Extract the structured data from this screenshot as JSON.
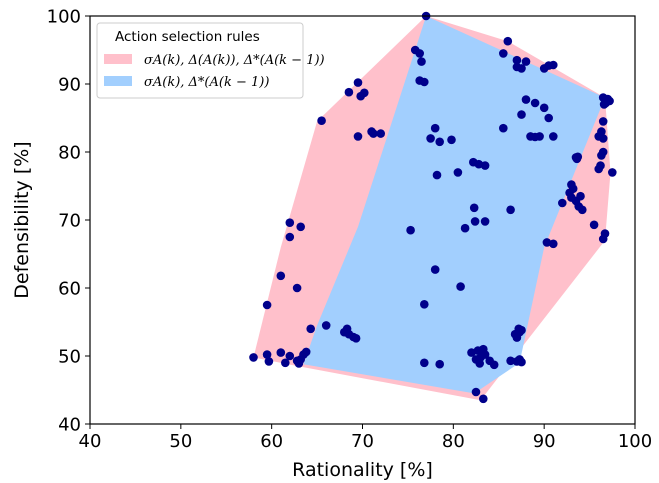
{
  "chart_data": {
    "type": "scatter",
    "xlabel": "Rationality [%]",
    "ylabel": "Defensibility [%]",
    "xlim": [
      40,
      100
    ],
    "ylim": [
      40,
      100
    ],
    "xticks": [
      "40",
      "50",
      "60",
      "70",
      "80",
      "90",
      "100"
    ],
    "yticks": [
      "40",
      "50",
      "60",
      "70",
      "80",
      "90",
      "100"
    ],
    "grid": false,
    "legend": {
      "title": "Action selection rules",
      "placement": "top-left",
      "entries": [
        {
          "label": "σA(k), Δ(A(k)), Δ*(A(k − 1))",
          "color": "#ffc0cb"
        },
        {
          "label": "σA(k), Δ*(A(k − 1))",
          "color": "#a2cffe"
        }
      ]
    },
    "regions": [
      {
        "color": "#ffc0cb",
        "hull": [
          [
            77,
            100
          ],
          [
            86,
            96.3
          ],
          [
            96.7,
            88
          ],
          [
            97.3,
            77
          ],
          [
            96.7,
            67
          ],
          [
            83,
            43.5
          ],
          [
            62.5,
            48.6
          ],
          [
            58,
            49.8
          ],
          [
            61,
            66
          ],
          [
            65,
            84.5
          ]
        ]
      },
      {
        "color": "#a2cffe",
        "hull": [
          [
            77,
            100
          ],
          [
            96.7,
            88
          ],
          [
            90,
            66
          ],
          [
            87.3,
            49
          ],
          [
            82.3,
            44.5
          ],
          [
            63.5,
            48.8
          ],
          [
            65,
            54.5
          ],
          [
            69.5,
            69
          ]
        ]
      }
    ],
    "points_color": "#00008b",
    "points": [
      [
        77,
        100
      ],
      [
        75.8,
        95
      ],
      [
        76.3,
        94.5
      ],
      [
        76.5,
        93.3
      ],
      [
        76.3,
        90.5
      ],
      [
        76.8,
        90.3
      ],
      [
        69.5,
        90.2
      ],
      [
        68.5,
        88.8
      ],
      [
        69.8,
        88.2
      ],
      [
        70.2,
        88.7
      ],
      [
        65.5,
        84.6
      ],
      [
        69.5,
        82.3
      ],
      [
        71,
        83
      ],
      [
        71.2,
        82.7
      ],
      [
        72,
        82.7
      ],
      [
        86,
        96.3
      ],
      [
        85.5,
        94.5
      ],
      [
        87,
        93.5
      ],
      [
        88,
        93.3
      ],
      [
        87,
        92.5
      ],
      [
        87.5,
        92.3
      ],
      [
        90,
        92.3
      ],
      [
        90.5,
        92.7
      ],
      [
        91,
        92.8
      ],
      [
        96.5,
        88
      ],
      [
        96.8,
        87.5
      ],
      [
        97,
        87.8
      ],
      [
        96.8,
        87.2
      ],
      [
        97.2,
        87.5
      ],
      [
        96.6,
        87
      ],
      [
        88,
        87.7
      ],
      [
        89,
        87.2
      ],
      [
        90,
        86.5
      ],
      [
        87.5,
        85.5
      ],
      [
        90.5,
        85
      ],
      [
        78,
        83.5
      ],
      [
        77.5,
        82
      ],
      [
        78.5,
        81.5
      ],
      [
        79.8,
        81.8
      ],
      [
        85.5,
        83.5
      ],
      [
        88.5,
        82.3
      ],
      [
        89,
        82.2
      ],
      [
        89.5,
        82.3
      ],
      [
        91,
        82.3
      ],
      [
        96.5,
        84.5
      ],
      [
        96.3,
        83
      ],
      [
        96,
        82.3
      ],
      [
        96.5,
        82
      ],
      [
        96.5,
        80
      ],
      [
        96.3,
        79.5
      ],
      [
        96.2,
        78
      ],
      [
        96,
        77.5
      ],
      [
        97.5,
        77
      ],
      [
        93.5,
        79.2
      ],
      [
        93.6,
        79
      ],
      [
        93.7,
        79.3
      ],
      [
        82.2,
        78.5
      ],
      [
        82.8,
        78.2
      ],
      [
        83.5,
        78
      ],
      [
        80.5,
        77
      ],
      [
        78.2,
        76.6
      ],
      [
        93,
        75.2
      ],
      [
        93.2,
        74.6
      ],
      [
        92.8,
        74
      ],
      [
        93,
        73.3
      ],
      [
        93.5,
        72.8
      ],
      [
        94,
        73.5
      ],
      [
        92,
        72.5
      ],
      [
        93.8,
        72
      ],
      [
        94.2,
        71.5
      ],
      [
        82.3,
        71.8
      ],
      [
        86.3,
        71.5
      ],
      [
        82.4,
        69.8
      ],
      [
        83.5,
        69.8
      ],
      [
        81.3,
        68.8
      ],
      [
        75.3,
        68.5
      ],
      [
        95.5,
        69.3
      ],
      [
        96.7,
        68
      ],
      [
        96.5,
        67.2
      ],
      [
        90.3,
        66.7
      ],
      [
        91,
        66.5
      ],
      [
        62,
        69.6
      ],
      [
        63.2,
        69
      ],
      [
        62,
        67.5
      ],
      [
        61,
        61.8
      ],
      [
        62.8,
        60
      ],
      [
        59.5,
        57.5
      ],
      [
        78,
        62.7
      ],
      [
        80.8,
        60.2
      ],
      [
        76.8,
        57.6
      ],
      [
        66,
        54.5
      ],
      [
        64.3,
        54
      ],
      [
        68,
        53.5
      ],
      [
        68.3,
        54
      ],
      [
        68.5,
        53.2
      ],
      [
        69,
        52.8
      ],
      [
        69.3,
        52.6
      ],
      [
        87,
        52.7
      ],
      [
        87.3,
        53.5
      ],
      [
        87.2,
        54
      ],
      [
        87.5,
        53.8
      ],
      [
        86.8,
        53.2
      ],
      [
        58,
        49.8
      ],
      [
        59.5,
        50.2
      ],
      [
        59.7,
        49.2
      ],
      [
        61,
        50.5
      ],
      [
        61.5,
        49
      ],
      [
        62,
        50
      ],
      [
        62.8,
        49.3
      ],
      [
        63,
        48.9
      ],
      [
        63.2,
        49.5
      ],
      [
        63.5,
        50.2
      ],
      [
        63.8,
        50.6
      ],
      [
        76.8,
        49
      ],
      [
        78.5,
        48.8
      ],
      [
        82,
        50.5
      ],
      [
        82.5,
        49.5
      ],
      [
        83,
        49.8
      ],
      [
        83.3,
        51
      ],
      [
        83.5,
        50.2
      ],
      [
        84,
        49.3
      ],
      [
        84.5,
        48.7
      ],
      [
        82.7,
        50.8
      ],
      [
        82.9,
        48.9
      ],
      [
        86.3,
        49.3
      ],
      [
        87,
        49.2
      ],
      [
        87.3,
        49.5
      ],
      [
        87.5,
        49.1
      ],
      [
        82.5,
        44.7
      ],
      [
        83.3,
        43.7
      ]
    ]
  }
}
